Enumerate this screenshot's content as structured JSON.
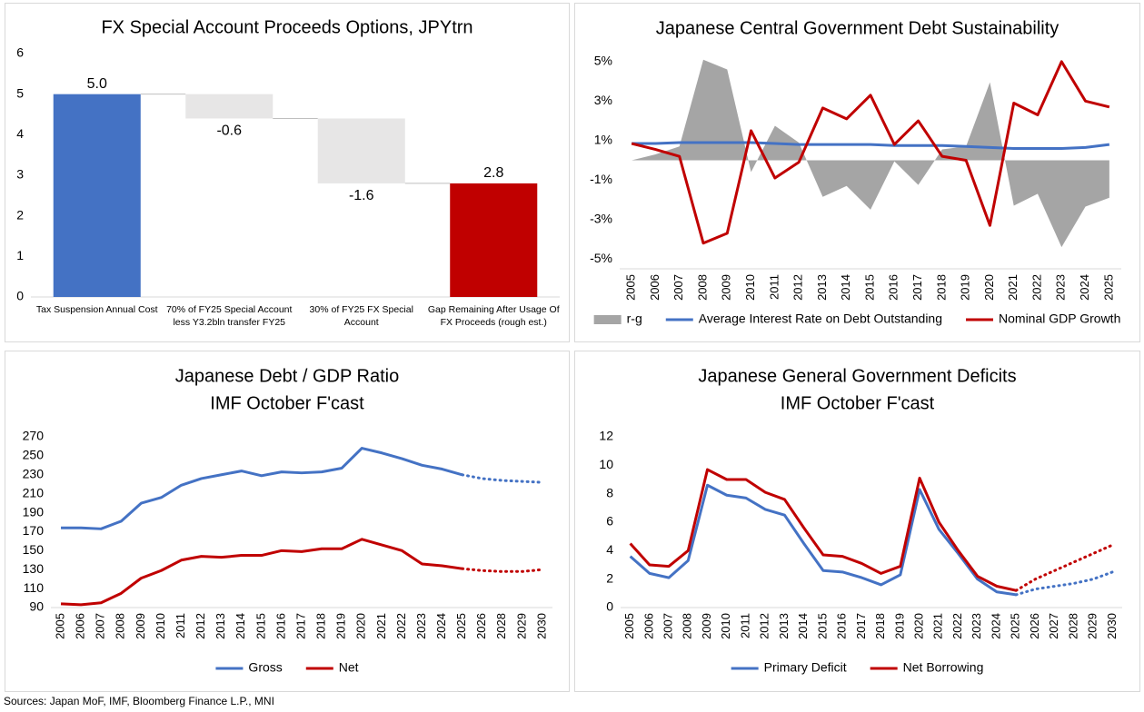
{
  "chart_data": [
    {
      "type": "waterfall",
      "title": "FX Special Account Proceeds Options, JPYtrn",
      "categories": [
        "Tax Suspension Annual Cost",
        "70% of FY25 Special Account less Y3.2bln transfer FY25",
        "30% of FY25 FX Special Account",
        "Gap Remaining After Usage Of FX Proceeds (rough est.)"
      ],
      "values": [
        5.0,
        -0.6,
        -1.6,
        2.8
      ],
      "value_labels": [
        "5.0",
        "-0.6",
        "-1.6",
        "2.8"
      ],
      "colors": [
        "#4472c4",
        "#e7e6e6",
        "#e7e6e6",
        "#c00000"
      ],
      "ylim": [
        0,
        6
      ],
      "yticks": [
        0,
        1,
        2,
        3,
        4,
        5,
        6
      ],
      "grid": false
    },
    {
      "type": "line",
      "title": "Japanese Central Government Debt Sustainability",
      "categories": [
        "2005",
        "2006",
        "2007",
        "2008",
        "2009",
        "2010",
        "2011",
        "2012",
        "2013",
        "2014",
        "2015",
        "2016",
        "2017",
        "2018",
        "2019",
        "2020",
        "2021",
        "2022",
        "2023",
        "2024",
        "2025"
      ],
      "series": [
        {
          "name": "r-g",
          "type": "area",
          "color": "#a5a5a5",
          "values": [
            0,
            0.3,
            0.7,
            5.1,
            4.6,
            -0.6,
            1.75,
            0.9,
            -1.85,
            -1.3,
            -2.5,
            -0.05,
            -1.25,
            0.55,
            0.7,
            3.95,
            -2.3,
            -1.7,
            -4.4,
            -2.35,
            -1.9
          ]
        },
        {
          "name": "Average Interest Rate on Debt Outstanding",
          "type": "line",
          "color": "#4472c4",
          "values": [
            0.85,
            0.85,
            0.9,
            0.9,
            0.9,
            0.9,
            0.85,
            0.8,
            0.8,
            0.8,
            0.8,
            0.75,
            0.75,
            0.75,
            0.7,
            0.65,
            0.6,
            0.6,
            0.6,
            0.65,
            0.8
          ]
        },
        {
          "name": "Nominal GDP Growth",
          "type": "line",
          "color": "#c00000",
          "values": [
            0.85,
            0.55,
            0.2,
            -4.2,
            -3.7,
            1.5,
            -0.9,
            -0.1,
            2.65,
            2.1,
            3.3,
            0.8,
            2.0,
            0.2,
            0.0,
            -3.3,
            2.9,
            2.3,
            5.0,
            3.0,
            2.7
          ]
        }
      ],
      "ylim": [
        -5.5,
        5.5
      ],
      "yticks": [
        {
          "value": -5,
          "label": "-5%"
        },
        {
          "value": -3,
          "label": "-3%"
        },
        {
          "value": -1,
          "label": "-1%"
        },
        {
          "value": 1,
          "label": "1%"
        },
        {
          "value": 3,
          "label": "3%"
        },
        {
          "value": 5,
          "label": "5%"
        }
      ],
      "grid": false,
      "legend": "bottom"
    },
    {
      "type": "line",
      "title": [
        "Japanese Debt / GDP Ratio",
        "IMF October F'cast"
      ],
      "categories": [
        "2005",
        "2006",
        "2007",
        "2008",
        "2009",
        "2010",
        "2011",
        "2012",
        "2013",
        "2014",
        "2015",
        "2016",
        "2017",
        "2018",
        "2019",
        "2020",
        "2021",
        "2022",
        "2023",
        "2024",
        "2025",
        "2026",
        "2028",
        "2029",
        "2030"
      ],
      "series": [
        {
          "name": "Gross",
          "type": "line",
          "color": "#4472c4",
          "values": [
            174,
            174,
            173,
            181,
            200,
            206,
            219,
            226,
            230,
            234,
            229,
            233,
            232,
            233,
            237,
            258,
            253,
            247,
            240,
            236,
            230,
            226,
            224,
            223,
            222
          ]
        },
        {
          "name": "Net",
          "type": "line",
          "color": "#c00000",
          "values": [
            94,
            93,
            95,
            105,
            121,
            129,
            140,
            144,
            143,
            145,
            145,
            150,
            149,
            152,
            152,
            162,
            156,
            150,
            136,
            134,
            131,
            129,
            128,
            128,
            130
          ]
        }
      ],
      "dashed_from": "2025",
      "ylim": [
        90,
        270
      ],
      "yticks": [
        90,
        110,
        130,
        150,
        170,
        190,
        210,
        230,
        250,
        270
      ],
      "grid": false,
      "legend": "bottom"
    },
    {
      "type": "line",
      "title": [
        "Japanese General Government Deficits",
        "IMF October F'cast"
      ],
      "categories": [
        "2005",
        "2006",
        "2007",
        "2008",
        "2009",
        "2010",
        "2011",
        "2012",
        "2013",
        "2014",
        "2015",
        "2016",
        "2017",
        "2018",
        "2019",
        "2020",
        "2021",
        "2022",
        "2023",
        "2024",
        "2025",
        "2026",
        "2027",
        "2028",
        "2029",
        "2030"
      ],
      "series": [
        {
          "name": "Primary Deficit",
          "type": "line",
          "color": "#4472c4",
          "values": [
            3.6,
            2.4,
            2.1,
            3.3,
            8.6,
            7.9,
            7.7,
            6.9,
            6.5,
            4.5,
            2.6,
            2.5,
            2.1,
            1.6,
            2.3,
            8.3,
            5.5,
            3.8,
            2.0,
            1.1,
            0.9,
            1.3,
            1.5,
            1.7,
            2.0,
            2.5
          ]
        },
        {
          "name": "Net Borrowing",
          "type": "line",
          "color": "#c00000",
          "values": [
            4.5,
            3.0,
            2.9,
            4.0,
            9.7,
            9.0,
            9.0,
            8.1,
            7.6,
            5.6,
            3.7,
            3.6,
            3.1,
            2.4,
            2.9,
            9.1,
            6.0,
            4.0,
            2.2,
            1.5,
            1.2,
            2.0,
            2.6,
            3.2,
            3.8,
            4.4
          ]
        }
      ],
      "dashed_from": "2025",
      "ylim": [
        0,
        12
      ],
      "yticks": [
        0,
        2,
        4,
        6,
        8,
        10,
        12
      ],
      "grid": false,
      "legend": "bottom"
    }
  ],
  "source": "Sources: Japan MoF, IMF, Bloomberg Finance L.P., MNI"
}
